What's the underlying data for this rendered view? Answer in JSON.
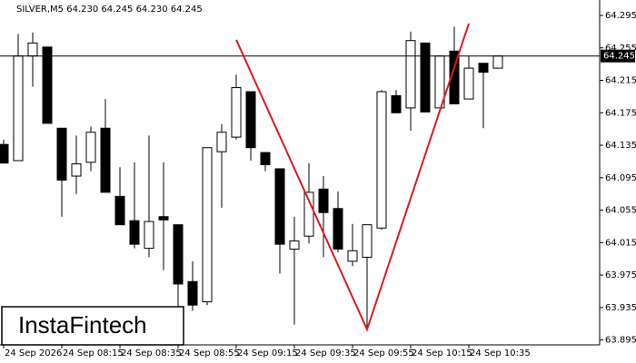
{
  "chart_data": {
    "type": "candlestick",
    "header": "SILVER,M5  64.230 64.245 64.230 64.245",
    "logo": "InstaFintech",
    "categories": [
      "24 Sep 2026",
      null,
      null,
      null,
      "24 Sep 08:15",
      null,
      null,
      null,
      "24 Sep 08:35",
      null,
      null,
      null,
      "24 Sep 08:55",
      null,
      null,
      null,
      "24 Sep 09:15",
      null,
      null,
      null,
      "24 Sep 09:35",
      null,
      null,
      null,
      "24 Sep 09:55",
      null,
      null,
      null,
      "24 Sep 10:15",
      null,
      null,
      null,
      "24 Sep 10:35",
      null,
      null
    ],
    "open": [
      64.136,
      64.116,
      64.245,
      64.256,
      64.156,
      64.097,
      64.114,
      64.156,
      64.072,
      64.042,
      64.008,
      64.047,
      64.037,
      63.967,
      63.942,
      64.127,
      64.145,
      64.201,
      64.126,
      64.106,
      64.007,
      64.023,
      64.081,
      64.057,
      63.992,
      63.997,
      64.033,
      64.196,
      64.181,
      64.261,
      64.181,
      64.251,
      64.192,
      64.236,
      64.23
    ],
    "high": [
      64.142,
      64.272,
      64.274,
      64.256,
      64.156,
      64.147,
      64.158,
      64.192,
      64.108,
      64.114,
      64.147,
      64.114,
      64.037,
      63.992,
      64.132,
      64.161,
      64.222,
      64.201,
      64.126,
      64.106,
      64.047,
      64.113,
      64.097,
      64.078,
      64.038,
      64.037,
      64.203,
      64.203,
      64.275,
      64.261,
      64.245,
      64.281,
      64.245,
      64.236,
      64.245
    ],
    "low": [
      64.113,
      64.116,
      64.207,
      64.162,
      64.047,
      64.075,
      64.103,
      64.077,
      64.037,
      64.008,
      63.997,
      63.981,
      63.936,
      63.931,
      63.938,
      64.058,
      64.142,
      64.116,
      64.103,
      63.977,
      63.914,
      64.014,
      63.997,
      64.003,
      63.986,
      63.908,
      64.031,
      64.175,
      64.153,
      64.176,
      64.181,
      64.186,
      64.192,
      64.156,
      64.23
    ],
    "close": [
      64.113,
      64.245,
      64.261,
      64.162,
      64.092,
      64.112,
      64.151,
      64.077,
      64.037,
      64.013,
      64.041,
      64.043,
      63.964,
      63.938,
      64.132,
      64.151,
      64.206,
      64.132,
      64.111,
      64.013,
      64.017,
      64.077,
      64.052,
      64.007,
      64.005,
      64.037,
      64.201,
      64.175,
      64.264,
      64.176,
      64.245,
      64.186,
      64.23,
      64.225,
      64.245
    ],
    "ylim": [
      63.889,
      64.314
    ],
    "yticks": [
      64.295,
      64.255,
      64.215,
      64.175,
      64.135,
      64.095,
      64.055,
      64.015,
      63.975,
      63.935,
      63.895
    ],
    "current_price": 64.245,
    "current_price_label": "64.245",
    "pattern_line": {
      "color": "#e0181b",
      "x": [
        16,
        25,
        32
      ],
      "y": [
        64.265,
        63.908,
        64.285
      ]
    }
  }
}
